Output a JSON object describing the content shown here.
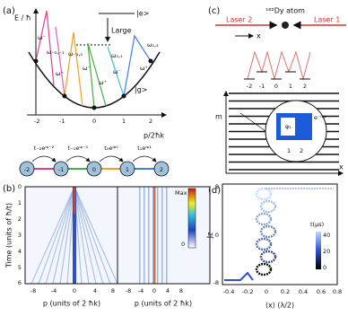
{
  "panel_a": {
    "label": "(a)",
    "y_axis": "E / ħ",
    "x_axis": "p/2ħk",
    "excited": "|e>",
    "ground": "|g>",
    "detuning": "Large",
    "x_ticks": [
      "-2",
      "-1",
      "0",
      "1",
      "2"
    ],
    "frequencies": [
      "ω⁻",
      "ω₋₂,₋₁",
      "ω⁺",
      "ω₋₁,₀",
      "ω⁻",
      "ω⁺",
      "ω₀,₁",
      "ω⁻",
      "ω₁,₂",
      "ω⁺"
    ],
    "chain_nodes": [
      "-2",
      "-1",
      "0",
      "1",
      "2"
    ],
    "couplings": [
      "t₋₂eⁱᵠ⁻²",
      "t₋₁eⁱᵠ⁻¹",
      "t₀eⁱᵠ⁰",
      "t₁eⁱᵠ¹"
    ]
  },
  "panel_b": {
    "label": "(b)",
    "y_axis": "Time (units of ħ/t)",
    "y_ticks": [
      "0",
      "1",
      "2",
      "3",
      "4",
      "5",
      "6"
    ],
    "x_ticks_left": [
      "-8",
      "-4",
      "0",
      "4",
      "8"
    ],
    "x_ticks_right": [
      "-8",
      "-4",
      "0",
      "4",
      "8"
    ],
    "x_axis_left": "p (units of 2 ħk)",
    "x_axis_right": "p (units of 2 ħk)",
    "colorbar_max": "Max",
    "colorbar_min": "0"
  },
  "panel_c": {
    "label": "(c)",
    "atom": "¹⁶²Dy atom",
    "laser_left": "Laser 2",
    "laser_right": "Laser 1",
    "direction": "x",
    "ladder": [
      "-2",
      "-1",
      "0",
      "1",
      "2"
    ],
    "y_axis": "m",
    "x_axis": "x",
    "inset_phase": "φ₁",
    "inset_factor": "e⁻ⁱᵠ¹",
    "inset_ticks": [
      "1",
      "2"
    ]
  },
  "panel_d": {
    "label": "(d)",
    "y_axis": "Jz",
    "y_ticks": [
      "8",
      "0",
      "-8"
    ],
    "x_ticks": [
      "-0.4",
      "-0.2",
      "0",
      "0.2",
      "0.4",
      "0.6",
      "0.8"
    ],
    "x_axis": "⟨x⟩ (λ/2)",
    "colorbar_title": "t(μs)",
    "colorbar_ticks": [
      "40",
      "20",
      "0"
    ]
  }
}
